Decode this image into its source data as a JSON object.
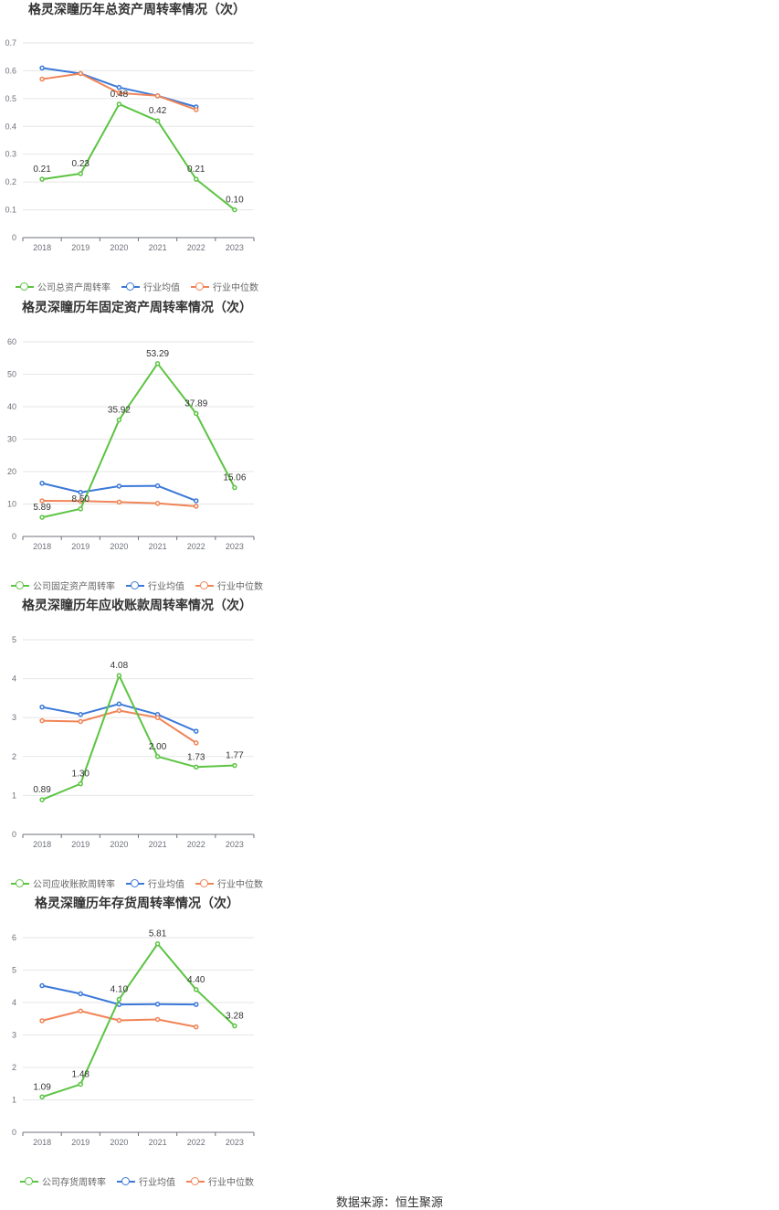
{
  "chart_data": [
    {
      "type": "line",
      "title": "格灵深瞳历年总资产周转率情况（次）",
      "categories": [
        "2018",
        "2019",
        "2020",
        "2021",
        "2022",
        "2023"
      ],
      "yticks": [
        "0",
        "0.1",
        "0.2",
        "0.3",
        "0.4",
        "0.5",
        "0.6",
        "0.7"
      ],
      "ylim": [
        0,
        0.7
      ],
      "series": [
        {
          "name": "公司总资产周转率",
          "values": [
            0.21,
            0.23,
            0.48,
            0.42,
            0.21,
            0.1
          ],
          "labels": [
            "0.21",
            "0.23",
            "0.48",
            "0.42",
            "0.21",
            "0.10"
          ]
        },
        {
          "name": "行业均值",
          "values": [
            0.61,
            0.59,
            0.54,
            0.51,
            0.47,
            null
          ]
        },
        {
          "name": "行业中位数",
          "values": [
            0.57,
            0.59,
            0.52,
            0.51,
            0.46,
            null
          ]
        }
      ]
    },
    {
      "type": "line",
      "title": "格灵深瞳历年固定资产周转率情况（次）",
      "categories": [
        "2018",
        "2019",
        "2020",
        "2021",
        "2022",
        "2023"
      ],
      "yticks": [
        "0",
        "10",
        "20",
        "30",
        "40",
        "50",
        "60"
      ],
      "ylim": [
        0,
        60
      ],
      "series": [
        {
          "name": "公司固定资产周转率",
          "values": [
            5.89,
            8.5,
            35.92,
            53.29,
            37.89,
            15.06
          ],
          "labels": [
            "5.89",
            "8.50",
            "35.92",
            "53.29",
            "37.89",
            "15.06"
          ]
        },
        {
          "name": "行业均值",
          "values": [
            16.4,
            13.6,
            15.5,
            15.6,
            11.0,
            null
          ]
        },
        {
          "name": "行业中位数",
          "values": [
            11.0,
            10.9,
            10.6,
            10.2,
            9.3,
            null
          ]
        }
      ]
    },
    {
      "type": "line",
      "title": "格灵深瞳历年应收账款周转率情况（次）",
      "categories": [
        "2018",
        "2019",
        "2020",
        "2021",
        "2022",
        "2023"
      ],
      "yticks": [
        "0",
        "1",
        "2",
        "3",
        "4",
        "5"
      ],
      "ylim": [
        0,
        5
      ],
      "series": [
        {
          "name": "公司应收账款周转率",
          "values": [
            0.89,
            1.3,
            4.08,
            2.0,
            1.73,
            1.77
          ],
          "labels": [
            "0.89",
            "1.30",
            "4.08",
            "2.00",
            "1.73",
            "1.77"
          ]
        },
        {
          "name": "行业均值",
          "values": [
            3.27,
            3.08,
            3.35,
            3.08,
            2.65,
            null
          ]
        },
        {
          "name": "行业中位数",
          "values": [
            2.92,
            2.9,
            3.18,
            3.0,
            2.35,
            null
          ]
        }
      ]
    },
    {
      "type": "line",
      "title": "格灵深瞳历年存货周转率情况（次）",
      "categories": [
        "2018",
        "2019",
        "2020",
        "2021",
        "2022",
        "2023"
      ],
      "yticks": [
        "0",
        "1",
        "2",
        "3",
        "4",
        "5",
        "6"
      ],
      "ylim": [
        0,
        6
      ],
      "series": [
        {
          "name": "公司存货周转率",
          "values": [
            1.09,
            1.48,
            4.1,
            5.81,
            4.4,
            3.28
          ],
          "labels": [
            "1.09",
            "1.48",
            "4.10",
            "5.81",
            "4.40",
            "3.28"
          ]
        },
        {
          "name": "行业均值",
          "values": [
            4.52,
            4.27,
            3.94,
            3.95,
            3.94,
            null
          ]
        },
        {
          "name": "行业中位数",
          "values": [
            3.44,
            3.74,
            3.45,
            3.48,
            3.25,
            null
          ]
        }
      ]
    }
  ],
  "colors": [
    "#5cc443",
    "#3b78d8",
    "#f08457"
  ],
  "source": "数据来源：恒生聚源"
}
